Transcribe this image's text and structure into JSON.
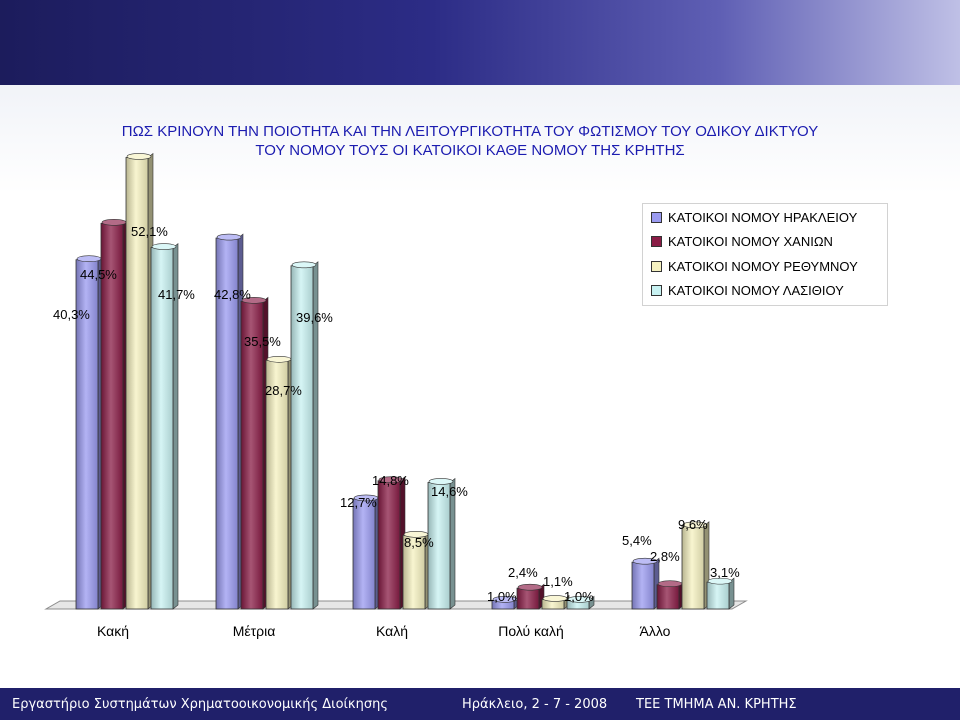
{
  "title_line1": "ΠΩΣ ΚΡΙΝΟΥΝ ΤΗΝ ΠΟΙΟΤΗΤΑ ΚΑΙ ΤΗΝ ΛΕΙΤΟΥΡΓΙΚΟΤΗΤΑ ΤΟΥ ΦΩΤΙΣΜΟΥ ΤΟΥ ΟΔΙΚΟΥ ΔΙΚΤΥΟΥ",
  "title_line2": "ΤΟΥ ΝΟΜΟΥ ΤΟΥΣ ΟΙ ΚΑΤΟΙΚΟΙ ΚΑΘΕ ΝΟΜΟΥ ΤΗΣ ΚΡΗΤΗΣ",
  "footer": {
    "left": "Εργαστήριο Συστημάτων Χρηματοοικονομικής Διοίκησης",
    "date": "Ηράκλειο, 2  - 7  -  2008",
    "org": "ΤΕΕ ΤΜΗΜΑ ΑΝ. ΚΡΗΤΗΣ"
  },
  "colors": {
    "header_band": "#2c2c86",
    "footer_band": "#20206a",
    "title_text": "#1c1cb0"
  },
  "chart_data": {
    "type": "bar",
    "title": "ΠΩΣ ΚΡΙΝΟΥΝ ΤΗΝ ΠΟΙΟΤΗΤΑ ΚΑΙ ΤΗΝ ΛΕΙΤΟΥΡΓΙΚΟΤΗΤΑ ΤΟΥ ΦΩΤΙΣΜΟΥ ΤΟΥ ΟΔΙΚΟΥ ΔΙΚΤΥΟΥ ΤΟΥ ΝΟΜΟΥ ΤΟΥΣ ΟΙ ΚΑΤΟΙΚΟΙ ΚΑΘΕ ΝΟΜΟΥ ΤΗΣ ΚΡΗΤΗΣ",
    "categories": [
      "Κακή",
      "Μέτρια",
      "Καλή",
      "Πολύ καλή",
      "Άλλο"
    ],
    "series": [
      {
        "name": "ΚΑΤΟΙΚΟΙ ΝΟΜΟΥ ΗΡΑΚΛΕΙΟΥ",
        "color": "#9a9af0",
        "values": [
          40.3,
          42.8,
          12.7,
          1.0,
          5.4
        ],
        "labels": [
          "40,3%",
          "42,8%",
          "12,7%",
          "1,0%",
          "5,4%"
        ]
      },
      {
        "name": "ΚΑΤΟΙΚΟΙ ΝΟΜΟΥ ΧΑΝΙΩΝ",
        "color": "#8a1c46",
        "values": [
          44.5,
          35.5,
          14.8,
          2.4,
          2.8
        ],
        "labels": [
          "44,5%",
          "35,5%",
          "14,8%",
          "2,4%",
          "2,8%"
        ]
      },
      {
        "name": "ΚΑΤΟΙΚΟΙ ΝΟΜΟΥ ΡΕΘΥΜΝΟΥ",
        "color": "#f5f1c0",
        "values": [
          52.1,
          28.7,
          8.5,
          1.1,
          9.6
        ],
        "labels": [
          "52,1%",
          "28,7%",
          "8,5%",
          "1,1%",
          "9,6%"
        ]
      },
      {
        "name": "ΚΑΤΟΙΚΟΙ ΝΟΜΟΥ ΛΑΣΙΘΙΟΥ",
        "color": "#c8f2f2",
        "values": [
          41.7,
          39.6,
          14.6,
          1.0,
          3.1
        ],
        "labels": [
          "41,7%",
          "39,6%",
          "14,6%",
          "1,0%",
          "3,1%"
        ]
      }
    ],
    "ylim": [
      0,
      60
    ],
    "grid": false,
    "legend": "top-right",
    "three_d": true
  }
}
